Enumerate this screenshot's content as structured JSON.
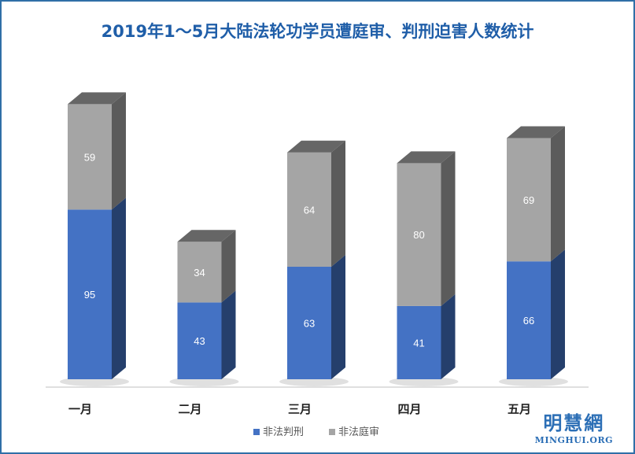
{
  "chart_data": {
    "type": "bar",
    "stacked": true,
    "title": "2019年1～5月大陆法轮功学员遭庭审、判刑迫害人数统计",
    "categories": [
      "一月",
      "二月",
      "三月",
      "四月",
      "五月"
    ],
    "series": [
      {
        "name": "非法判刑",
        "values": [
          95,
          43,
          63,
          41,
          66
        ],
        "color": "#4472c4"
      },
      {
        "name": "非法庭审",
        "values": [
          59,
          34,
          64,
          80,
          69
        ],
        "color": "#a5a5a5"
      }
    ],
    "ylim": [
      0,
      160
    ],
    "grid": false,
    "legend_position": "bottom"
  },
  "watermark": {
    "name_cn": "明慧網",
    "name_en": "MINGHUI.ORG"
  }
}
